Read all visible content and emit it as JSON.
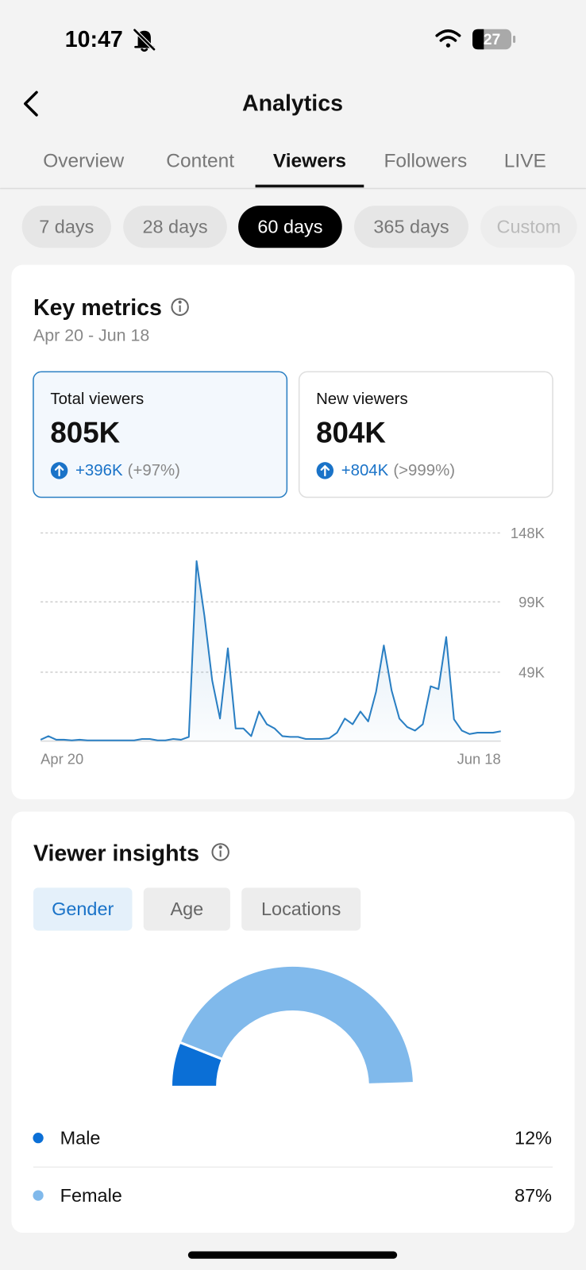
{
  "status_bar": {
    "time": "10:47",
    "battery": "27"
  },
  "header": {
    "title": "Analytics"
  },
  "tabs": {
    "items": [
      "Overview",
      "Content",
      "Viewers",
      "Followers",
      "LIVE"
    ],
    "selected": 2
  },
  "range_chips": {
    "items": [
      "7 days",
      "28 days",
      "60 days",
      "365 days",
      "Custom"
    ],
    "selected": 2
  },
  "key_metrics": {
    "title": "Key metrics",
    "date_range": "Apr 20 - Jun 18",
    "selected_card": 0,
    "cards": [
      {
        "label": "Total viewers",
        "value": "805K",
        "change": "+396K",
        "percent": "(+97%)"
      },
      {
        "label": "New viewers",
        "value": "804K",
        "change": "+804K",
        "percent": "(>999%)"
      }
    ]
  },
  "viewer_insights": {
    "title": "Viewer insights",
    "chips": {
      "items": [
        "Gender",
        "Age",
        "Locations"
      ],
      "selected": 0
    }
  },
  "chart_data": [
    {
      "type": "line",
      "color": "#2a7fc3",
      "categories": [
        "Apr 20",
        null,
        null,
        null,
        null,
        null,
        null,
        null,
        null,
        null,
        null,
        null,
        null,
        null,
        null,
        null,
        null,
        null,
        null,
        null,
        null,
        null,
        null,
        null,
        null,
        null,
        null,
        null,
        null,
        null,
        null,
        null,
        null,
        null,
        null,
        null,
        null,
        null,
        null,
        null,
        null,
        null,
        null,
        null,
        null,
        null,
        null,
        null,
        null,
        null,
        null,
        null,
        null,
        null,
        null,
        null,
        null,
        null,
        null,
        "Jun 18"
      ],
      "values": [
        1000,
        3500,
        1000,
        1000,
        500,
        1000,
        500,
        500,
        500,
        500,
        500,
        500,
        500,
        1500,
        1500,
        500,
        500,
        1500,
        1000,
        3000,
        128000,
        89000,
        43000,
        16000,
        66000,
        9000,
        9000,
        3500,
        21000,
        12000,
        9000,
        3500,
        3000,
        3000,
        1500,
        1500,
        1500,
        2000,
        6000,
        16000,
        12000,
        21000,
        14000,
        35000,
        68000,
        36000,
        16000,
        10000,
        7500,
        12000,
        39000,
        37000,
        74000,
        15500,
        7500,
        5000,
        6000,
        6000,
        6000,
        7000
      ],
      "ylim": [
        0,
        148000
      ],
      "yticks": [
        {
          "value": 49000,
          "label": "49K"
        },
        {
          "value": 99000,
          "label": "99K"
        },
        {
          "value": 148000,
          "label": "148K"
        }
      ],
      "grid": true
    },
    {
      "type": "pie",
      "categories": [
        "Male",
        "Female"
      ],
      "values": [
        12,
        87
      ],
      "value_labels": [
        "12%",
        "87%"
      ],
      "colors": [
        "#0b6fd6",
        "#80b9eb"
      ]
    }
  ]
}
